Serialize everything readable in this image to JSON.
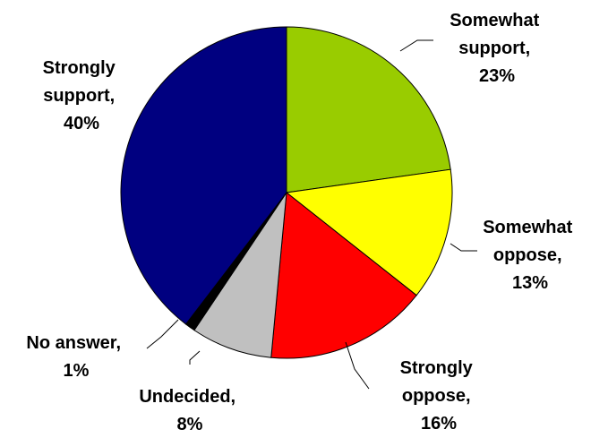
{
  "chart_data": {
    "type": "pie",
    "title": "",
    "legend": "none",
    "labels_format": "category-and-percent",
    "start_angle_direction": "clockwise-from-top",
    "slices": [
      {
        "name": "Somewhat support",
        "label_line1": "Somewhat",
        "label_line2": "support,",
        "label_pct": "23%",
        "value": 23,
        "color": "#99CC00"
      },
      {
        "name": "Somewhat oppose",
        "label_line1": "Somewhat",
        "label_line2": "oppose,",
        "label_pct": "13%",
        "value": 13,
        "color": "#FFFF00"
      },
      {
        "name": "Strongly oppose",
        "label_line1": "Strongly",
        "label_line2": "oppose,",
        "label_pct": "16%",
        "value": 16,
        "color": "#FF0000"
      },
      {
        "name": "Undecided",
        "label_line1": "",
        "label_line2": "Undecided,",
        "label_pct": "8%",
        "value": 8,
        "color": "#C0C0C0"
      },
      {
        "name": "No answer",
        "label_line1": "",
        "label_line2": "No answer,",
        "label_pct": "1%",
        "value": 1,
        "color": "#000000"
      },
      {
        "name": "Strongly support",
        "label_line1": "Strongly",
        "label_line2": "support,",
        "label_pct": "40%",
        "value": 40,
        "color": "#000080"
      }
    ]
  }
}
